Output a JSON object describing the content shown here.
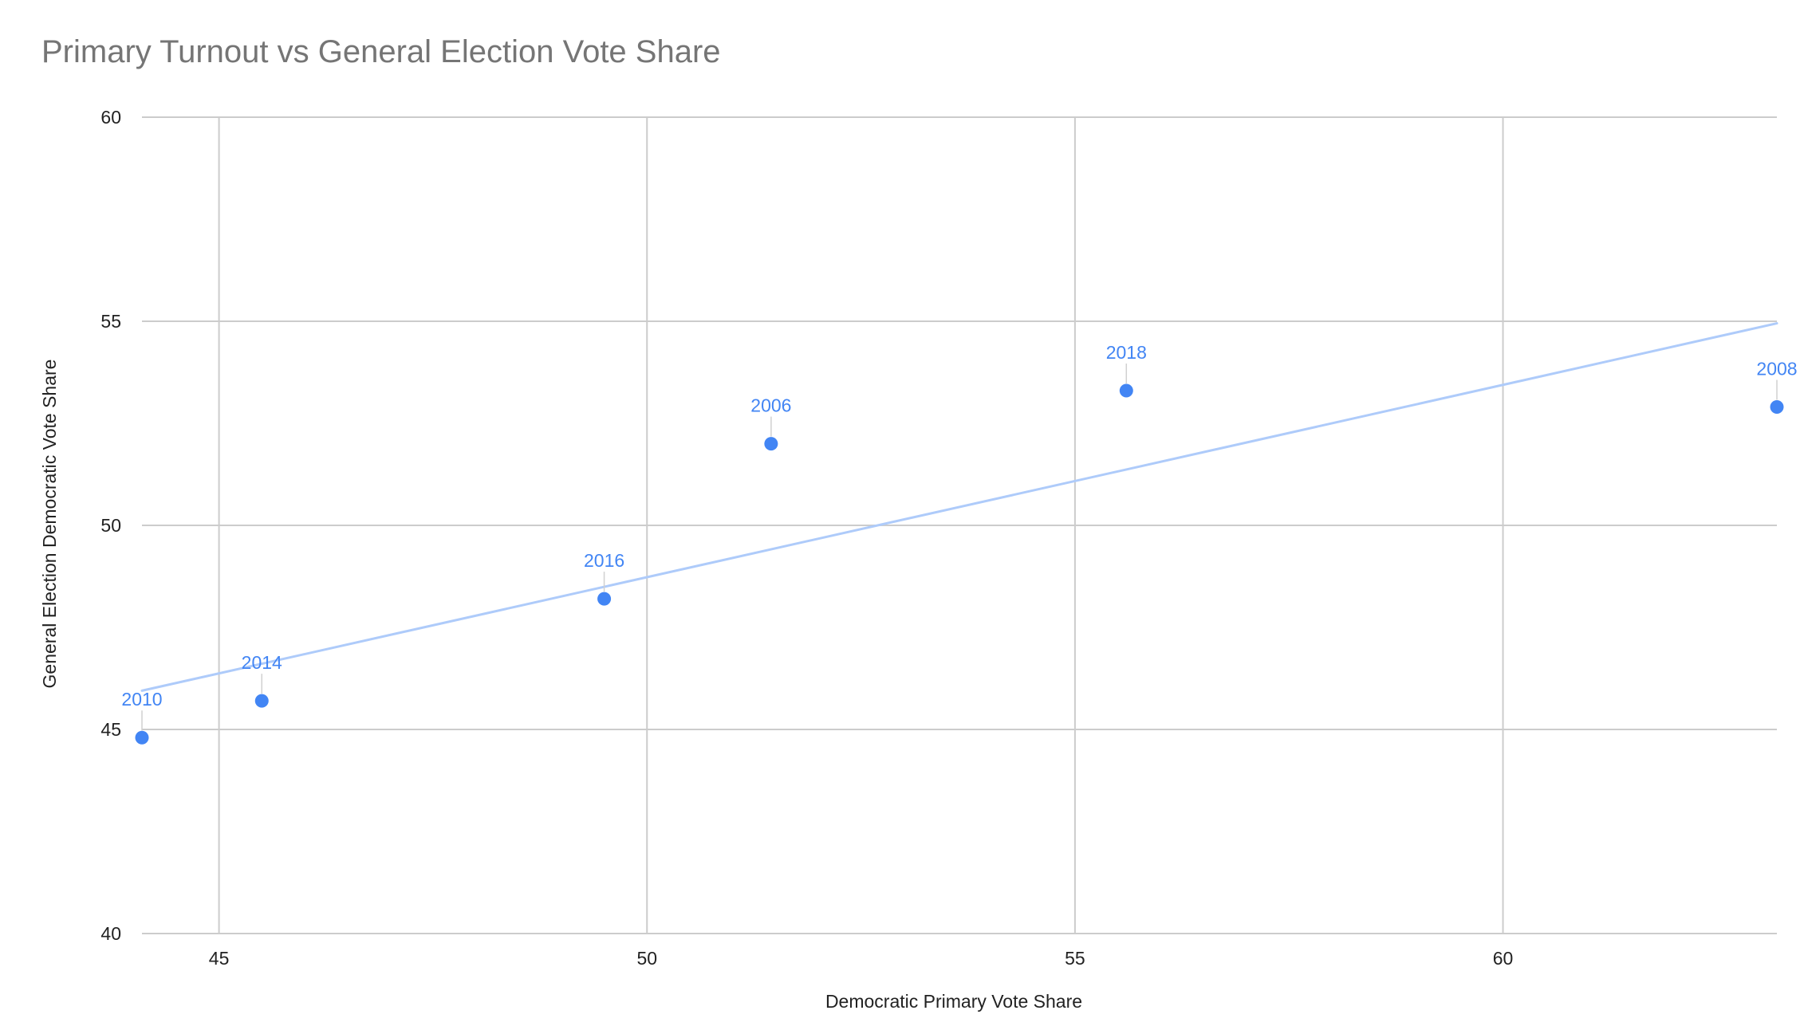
{
  "chart_data": {
    "type": "scatter",
    "title": "Primary Turnout vs General Election Vote Share",
    "xlabel": "Democratic Primary Vote Share",
    "ylabel": "General Election Democratic Vote Share",
    "xlim": [
      44.1,
      63.2
    ],
    "ylim": [
      40,
      60
    ],
    "x_ticks": [
      45,
      50,
      55,
      60
    ],
    "y_ticks": [
      40,
      45,
      50,
      55,
      60
    ],
    "grid": true,
    "legend": "none",
    "point_color": "#4285f4",
    "trendline_color": "#aecbfa",
    "series": [
      {
        "points": [
          {
            "label": "2010",
            "x": 44.1,
            "y": 44.8
          },
          {
            "label": "2014",
            "x": 45.5,
            "y": 45.7
          },
          {
            "label": "2016",
            "x": 49.5,
            "y": 48.2
          },
          {
            "label": "2006",
            "x": 51.45,
            "y": 52.0
          },
          {
            "label": "2018",
            "x": 55.6,
            "y": 53.3
          },
          {
            "label": "2008",
            "x": 63.2,
            "y": 52.9
          }
        ]
      }
    ],
    "trendline": {
      "type": "linear",
      "x_start": 44.1,
      "y_start": 45.95,
      "x_end": 63.2,
      "y_end": 54.95
    }
  }
}
